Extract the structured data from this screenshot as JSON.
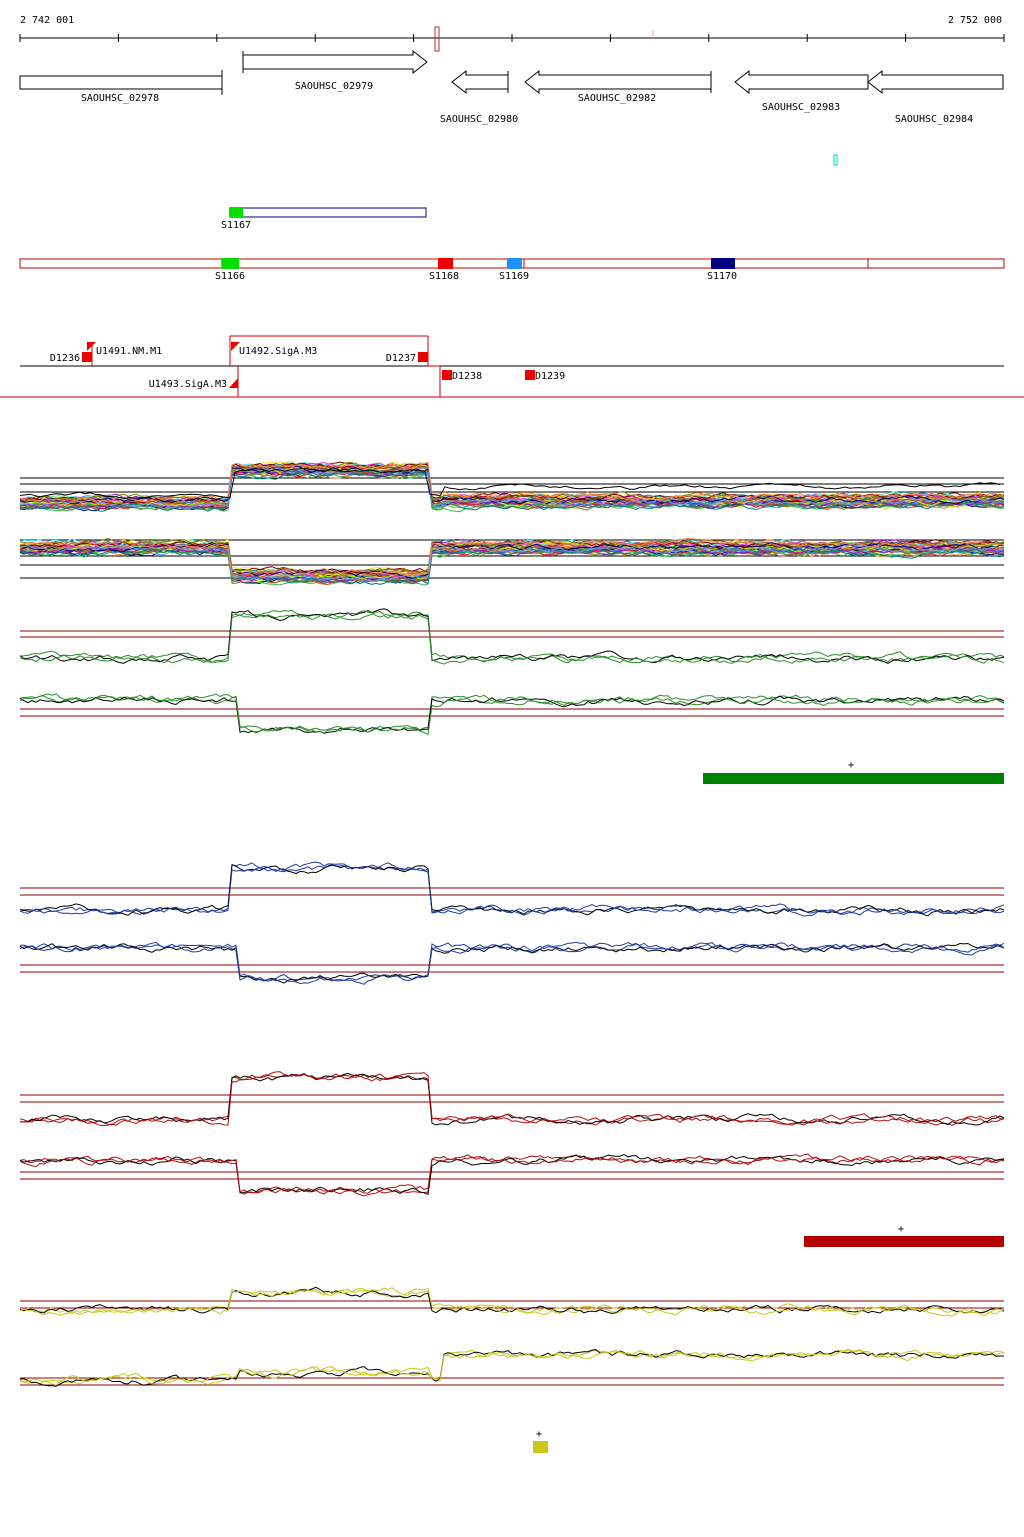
{
  "coords": {
    "start_label": "2 742 001",
    "end_label": "2 752 000"
  },
  "genes": [
    {
      "label": "SAOUHSC_02978",
      "strand": "+"
    },
    {
      "label": "SAOUHSC_02979",
      "strand": "+"
    },
    {
      "label": "SAOUHSC_02980",
      "strand": "-"
    },
    {
      "label": "SAOUHSC_02982",
      "strand": "-"
    },
    {
      "label": "SAOUHSC_02983",
      "strand": "-"
    },
    {
      "label": "SAOUHSC_02984",
      "strand": "-"
    }
  ],
  "segments": [
    {
      "label": "S1167",
      "color": "#00e000"
    },
    {
      "label": "S1166",
      "color": "#00e000"
    },
    {
      "label": "S1168",
      "color": "#ee0000"
    },
    {
      "label": "S1169",
      "color": "#1e90ff"
    },
    {
      "label": "S1170",
      "color": "#000080"
    }
  ],
  "features": [
    {
      "label": "D1236"
    },
    {
      "label": "U1491.NM.M1"
    },
    {
      "label": "U1492.SigA.M3"
    },
    {
      "label": "D1237"
    },
    {
      "label": "U1493.SigA.M3"
    },
    {
      "label": "D1238"
    },
    {
      "label": "D1239"
    }
  ],
  "tracks": [
    {
      "id": "all-conditions",
      "kind": "multi"
    },
    {
      "id": "green",
      "color": "#2a8f2a",
      "highlight_color": "#008000",
      "highlight_label": "+"
    },
    {
      "id": "blue",
      "color": "#1e3ca0"
    },
    {
      "id": "red",
      "color": "#b01010",
      "highlight_color": "#b00000",
      "highlight_label": "+"
    },
    {
      "id": "yellow",
      "color": "#c8c820",
      "highlight_color": "#c8c820",
      "highlight_label": "+"
    }
  ],
  "colors": {
    "gene_outline": "#000000",
    "segment_plus": "#000080",
    "segment_minus": "#cc0000",
    "feature": "#ee0000",
    "threshold": "#8b0000"
  }
}
